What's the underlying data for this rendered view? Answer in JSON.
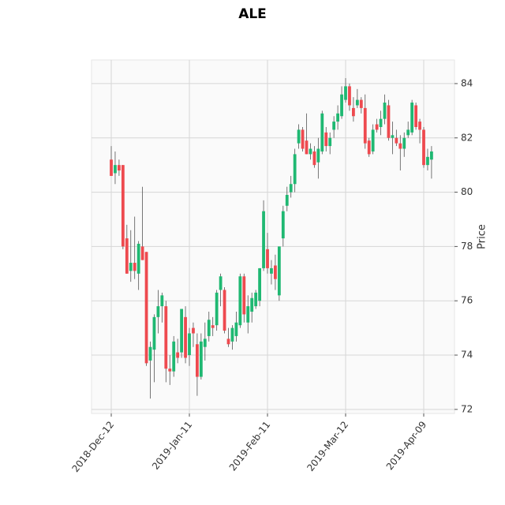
{
  "chart_data": {
    "type": "candlestick",
    "title": "ALE",
    "ylabel": "Price",
    "categories": [
      "2018-Dec-12",
      null,
      null,
      null,
      null,
      null,
      null,
      null,
      null,
      null,
      null,
      null,
      null,
      null,
      null,
      null,
      null,
      null,
      null,
      null,
      "2019-Jan-11",
      null,
      null,
      null,
      null,
      null,
      null,
      null,
      null,
      null,
      null,
      null,
      null,
      null,
      null,
      null,
      null,
      null,
      null,
      null,
      "2019-Feb-11",
      null,
      null,
      null,
      null,
      null,
      null,
      null,
      null,
      null,
      null,
      null,
      null,
      null,
      null,
      null,
      null,
      null,
      null,
      null,
      "2019-Mar-12",
      null,
      null,
      null,
      null,
      null,
      null,
      null,
      null,
      null,
      null,
      null,
      null,
      null,
      null,
      null,
      null,
      null,
      null,
      null,
      "2019-Apr-09",
      null,
      null
    ],
    "open": [
      81.2,
      80.7,
      81.0,
      81.0,
      78.3,
      77.1,
      77.4,
      77.0,
      78.0,
      77.8,
      73.8,
      74.2,
      75.4,
      75.8,
      75.8,
      73.5,
      73.4,
      74.1,
      74.1,
      75.4,
      74.0,
      75.0,
      74.4,
      73.2,
      74.3,
      74.7,
      75.1,
      75.1,
      76.4,
      76.4,
      74.6,
      74.5,
      74.7,
      75.1,
      76.9,
      75.2,
      75.6,
      75.8,
      76.0,
      77.2,
      77.9,
      77.0,
      77.3,
      76.2,
      78.3,
      79.5,
      80.0,
      80.3,
      81.8,
      82.3,
      81.9,
      81.4,
      81.5,
      81.1,
      81.5,
      82.2,
      81.7,
      82.3,
      82.6,
      82.8,
      83.4,
      83.9,
      83.1,
      83.2,
      83.4,
      83.1,
      81.9,
      81.5,
      82.5,
      82.4,
      82.7,
      83.2,
      82.0,
      82.0,
      81.8,
      81.6,
      82.1,
      82.2,
      83.2,
      82.6,
      82.3,
      81.0,
      81.2
    ],
    "high": [
      81.7,
      81.5,
      81.2,
      81.0,
      78.8,
      78.6,
      79.1,
      78.2,
      80.2,
      77.8,
      74.5,
      75.5,
      76.4,
      76.3,
      76.0,
      74.0,
      74.7,
      74.6,
      75.7,
      75.8,
      75.0,
      75.2,
      74.8,
      74.8,
      75.2,
      75.6,
      75.4,
      76.4,
      77.0,
      76.5,
      75.0,
      75.1,
      75.6,
      77.0,
      77.0,
      76.2,
      76.3,
      76.4,
      77.2,
      79.7,
      78.5,
      77.5,
      77.7,
      78.0,
      79.5,
      80.2,
      80.6,
      81.6,
      82.5,
      82.4,
      82.9,
      81.8,
      81.7,
      82.0,
      83.0,
      82.4,
      82.2,
      82.8,
      83.2,
      83.9,
      84.2,
      84.0,
      83.5,
      83.8,
      83.5,
      83.6,
      82.0,
      82.5,
      82.7,
      83.0,
      83.6,
      83.4,
      82.6,
      82.3,
      82.1,
      82.2,
      82.6,
      83.4,
      83.3,
      82.7,
      82.4,
      81.6,
      81.7
    ],
    "low": [
      80.6,
      80.3,
      80.6,
      77.9,
      77.0,
      76.7,
      76.8,
      76.4,
      77.5,
      73.6,
      72.4,
      73.0,
      74.8,
      75.2,
      73.0,
      72.9,
      73.2,
      73.7,
      73.9,
      73.7,
      73.6,
      74.3,
      72.5,
      73.1,
      73.8,
      74.5,
      74.7,
      74.9,
      75.8,
      74.8,
      74.3,
      74.2,
      74.5,
      75.0,
      75.2,
      74.8,
      75.2,
      75.7,
      75.8,
      77.1,
      77.0,
      76.6,
      76.4,
      76.0,
      78.0,
      79.3,
      79.8,
      80.0,
      81.6,
      81.5,
      81.4,
      81.2,
      80.9,
      80.5,
      81.4,
      81.5,
      81.4,
      82.0,
      82.3,
      82.7,
      83.3,
      83.0,
      82.6,
      83.1,
      82.9,
      81.6,
      81.3,
      81.4,
      82.2,
      82.1,
      82.5,
      81.9,
      81.4,
      81.7,
      80.8,
      81.3,
      82.0,
      82.1,
      82.3,
      81.8,
      80.9,
      80.8,
      80.5
    ],
    "close": [
      80.6,
      81.0,
      80.8,
      78.0,
      77.0,
      77.4,
      77.1,
      78.1,
      77.5,
      73.7,
      74.3,
      75.4,
      75.8,
      76.2,
      73.5,
      73.4,
      74.5,
      73.9,
      75.7,
      73.9,
      74.8,
      74.8,
      73.2,
      74.5,
      74.6,
      75.3,
      75.0,
      76.3,
      76.9,
      74.9,
      74.4,
      75.0,
      75.2,
      76.9,
      75.5,
      75.8,
      76.1,
      76.3,
      77.2,
      79.3,
      77.2,
      77.2,
      76.8,
      78.0,
      79.3,
      79.9,
      80.3,
      81.4,
      82.3,
      81.6,
      81.4,
      81.6,
      81.0,
      81.6,
      82.9,
      81.7,
      82.0,
      82.6,
      82.9,
      83.6,
      83.9,
      83.2,
      82.8,
      83.4,
      83.1,
      81.8,
      81.4,
      82.3,
      82.3,
      82.7,
      83.3,
      82.0,
      82.1,
      81.8,
      81.6,
      82.0,
      82.3,
      83.3,
      82.4,
      82.3,
      81.0,
      81.3,
      81.5
    ],
    "up_color": "#1fb872",
    "down_color": "#ee4a4f",
    "ylim": [
      71.85,
      84.87
    ],
    "yticks": [
      72,
      74,
      76,
      78,
      80,
      82,
      84
    ],
    "grid": true
  }
}
